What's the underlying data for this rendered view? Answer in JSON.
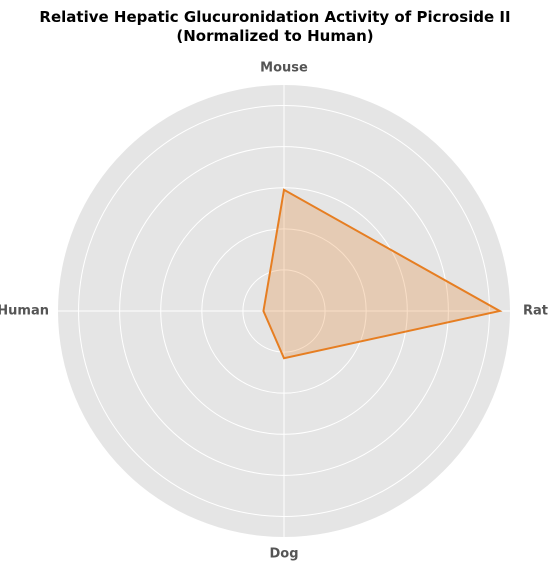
{
  "chart_data": {
    "type": "radar",
    "title": "Relative Hepatic Glucuronidation Activity of Picroside II\n(Normalized to Human)",
    "categories": [
      "Mouse",
      "Human",
      "Dog",
      "Rat"
    ],
    "series": [
      {
        "name": "Relative activity",
        "color": "#e67e22",
        "values": [
          5.9,
          1.0,
          2.3,
          10.5
        ]
      }
    ],
    "ylim": [
      0,
      11
    ],
    "yticks": [
      2,
      4,
      6,
      8,
      10
    ],
    "grid": true,
    "legend": false
  }
}
